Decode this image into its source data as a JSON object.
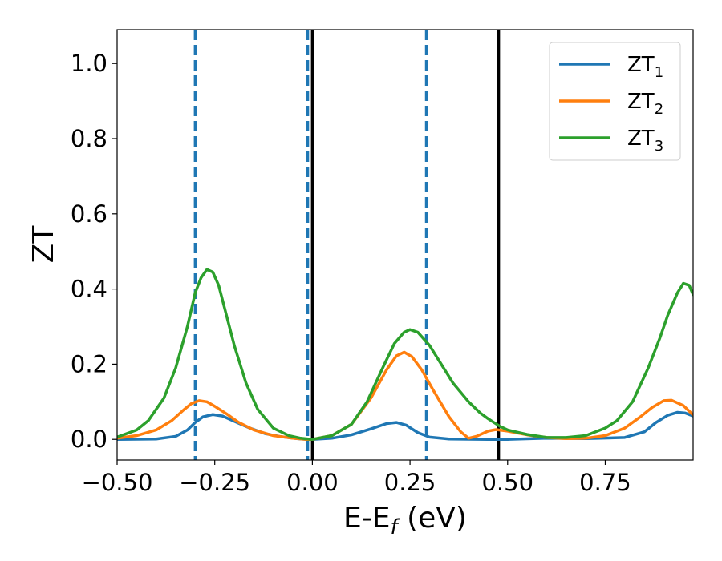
{
  "chart_data": {
    "type": "line",
    "xlabel_main": "E-E",
    "xlabel_sub": "f",
    "xlabel_unit": " (eV)",
    "ylabel": "ZT",
    "xlim": [
      -0.5,
      0.975
    ],
    "ylim": [
      -0.055,
      1.09
    ],
    "xticks": [
      -0.5,
      -0.25,
      0.0,
      0.25,
      0.5,
      0.75
    ],
    "xtick_labels": [
      "−0.50",
      "−0.25",
      "0.00",
      "0.25",
      "0.50",
      "0.75"
    ],
    "yticks": [
      0.0,
      0.2,
      0.4,
      0.6,
      0.8,
      1.0
    ],
    "ytick_labels": [
      "0.0",
      "0.2",
      "0.4",
      "0.6",
      "0.8",
      "1.0"
    ],
    "grid": false,
    "legend_position": "top-right",
    "vertical_lines": [
      {
        "x": -0.3,
        "style": "dashed",
        "color": "#1f77b4"
      },
      {
        "x": -0.012,
        "style": "dashed",
        "color": "#1f77b4"
      },
      {
        "x": 0.0,
        "style": "solid",
        "color": "#000000"
      },
      {
        "x": 0.292,
        "style": "dashed",
        "color": "#1f77b4"
      },
      {
        "x": 0.477,
        "style": "solid",
        "color": "#000000"
      }
    ],
    "series": [
      {
        "name": "ZT",
        "sub": "1",
        "color": "#1f77b4",
        "x": [
          -0.5,
          -0.4,
          -0.35,
          -0.32,
          -0.3,
          -0.28,
          -0.255,
          -0.23,
          -0.2,
          -0.16,
          -0.12,
          -0.08,
          -0.04,
          -0.015,
          0.0,
          0.05,
          0.1,
          0.15,
          0.19,
          0.215,
          0.24,
          0.27,
          0.3,
          0.35,
          0.45,
          0.5,
          0.6,
          0.7,
          0.8,
          0.85,
          0.88,
          0.91,
          0.935,
          0.955,
          0.975
        ],
        "values": [
          0.0,
          0.001,
          0.008,
          0.025,
          0.045,
          0.06,
          0.066,
          0.062,
          0.048,
          0.03,
          0.015,
          0.007,
          0.002,
          0.0,
          0.0,
          0.003,
          0.012,
          0.028,
          0.042,
          0.045,
          0.038,
          0.018,
          0.006,
          0.001,
          0.0,
          0.0,
          0.003,
          0.002,
          0.005,
          0.02,
          0.045,
          0.064,
          0.072,
          0.07,
          0.062
        ]
      },
      {
        "name": "ZT",
        "sub": "2",
        "color": "#ff7f0e",
        "x": [
          -0.5,
          -0.45,
          -0.4,
          -0.36,
          -0.33,
          -0.31,
          -0.29,
          -0.27,
          -0.25,
          -0.22,
          -0.19,
          -0.15,
          -0.1,
          -0.05,
          -0.015,
          0.0,
          0.05,
          0.1,
          0.15,
          0.19,
          0.215,
          0.235,
          0.255,
          0.28,
          0.31,
          0.35,
          0.38,
          0.4,
          0.42,
          0.45,
          0.47,
          0.5,
          0.55,
          0.6,
          0.65,
          0.7,
          0.75,
          0.8,
          0.84,
          0.87,
          0.9,
          0.92,
          0.95,
          0.975
        ],
        "values": [
          0.003,
          0.01,
          0.025,
          0.05,
          0.078,
          0.095,
          0.103,
          0.1,
          0.088,
          0.068,
          0.046,
          0.025,
          0.01,
          0.003,
          0.0,
          0.0,
          0.01,
          0.04,
          0.11,
          0.185,
          0.222,
          0.232,
          0.22,
          0.185,
          0.13,
          0.06,
          0.02,
          0.003,
          0.008,
          0.022,
          0.026,
          0.022,
          0.012,
          0.005,
          0.002,
          0.003,
          0.01,
          0.03,
          0.06,
          0.085,
          0.103,
          0.104,
          0.09,
          0.065
        ]
      },
      {
        "name": "ZT",
        "sub": "3",
        "color": "#2ca02c",
        "x": [
          -0.5,
          -0.45,
          -0.42,
          -0.38,
          -0.35,
          -0.32,
          -0.3,
          -0.285,
          -0.27,
          -0.255,
          -0.24,
          -0.22,
          -0.2,
          -0.17,
          -0.14,
          -0.1,
          -0.06,
          -0.03,
          0.0,
          0.05,
          0.1,
          0.14,
          0.18,
          0.21,
          0.235,
          0.25,
          0.27,
          0.3,
          0.33,
          0.36,
          0.4,
          0.43,
          0.45,
          0.48,
          0.5,
          0.55,
          0.6,
          0.65,
          0.7,
          0.75,
          0.78,
          0.82,
          0.86,
          0.89,
          0.91,
          0.935,
          0.95,
          0.965,
          0.975
        ],
        "values": [
          0.006,
          0.025,
          0.05,
          0.11,
          0.19,
          0.3,
          0.39,
          0.43,
          0.452,
          0.445,
          0.41,
          0.33,
          0.25,
          0.15,
          0.08,
          0.03,
          0.01,
          0.003,
          0.0,
          0.01,
          0.04,
          0.1,
          0.19,
          0.255,
          0.285,
          0.292,
          0.285,
          0.25,
          0.2,
          0.15,
          0.1,
          0.07,
          0.055,
          0.035,
          0.025,
          0.013,
          0.005,
          0.005,
          0.01,
          0.03,
          0.05,
          0.1,
          0.19,
          0.27,
          0.33,
          0.39,
          0.415,
          0.41,
          0.385
        ]
      }
    ]
  }
}
